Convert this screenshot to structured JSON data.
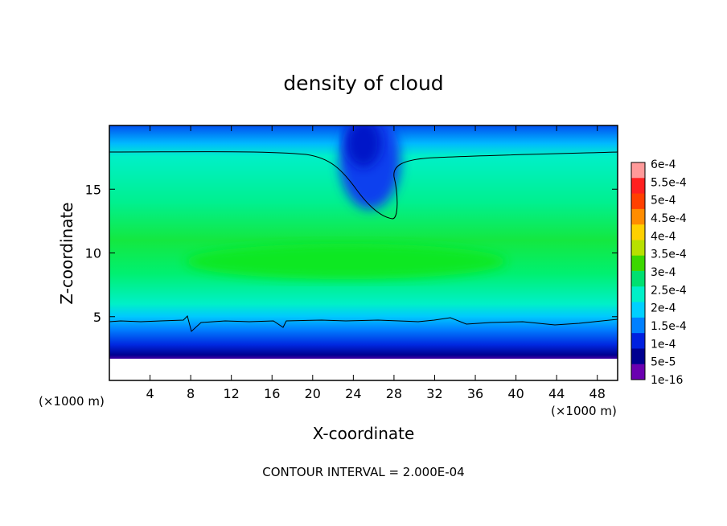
{
  "chart_data": {
    "type": "heatmap",
    "title": "density of cloud",
    "xlabel": "X-coordinate",
    "ylabel": "Z-coordinate",
    "x_units": "(×1000 m)",
    "x_units_right": "(×1000 m)",
    "xlim": [
      0,
      50
    ],
    "ylim": [
      0,
      20
    ],
    "x_ticks": [
      4,
      8,
      12,
      16,
      20,
      24,
      28,
      32,
      36,
      40,
      44,
      48
    ],
    "y_ticks": [
      5,
      10,
      15
    ],
    "contour_interval_text": "CONTOUR INTERVAL = 2.000E-04",
    "colorbar": {
      "labels": [
        "6e-4",
        "5.5e-4",
        "5e-4",
        "4.5e-4",
        "4e-4",
        "3.5e-4",
        "3e-4",
        "2.5e-4",
        "2e-4",
        "1.5e-4",
        "1e-4",
        "5e-5",
        "1e-16"
      ],
      "colors": [
        "#ff9a9a",
        "#ff2020",
        "#ff4000",
        "#ff8c00",
        "#ffd000",
        "#b8e000",
        "#3cd800",
        "#00e070",
        "#00f0c8",
        "#00d0ff",
        "#0080ff",
        "#0020e0",
        "#000090",
        "#6a00b0"
      ]
    },
    "field_description_levels": {
      "cloud_top_contour_z": 17.8,
      "cloud_base_contour_z": 4.7,
      "dip_center_x": 26,
      "dip_min_z": 12.7,
      "max_density_z": 9.5,
      "max_density_value": 0.00027
    }
  }
}
